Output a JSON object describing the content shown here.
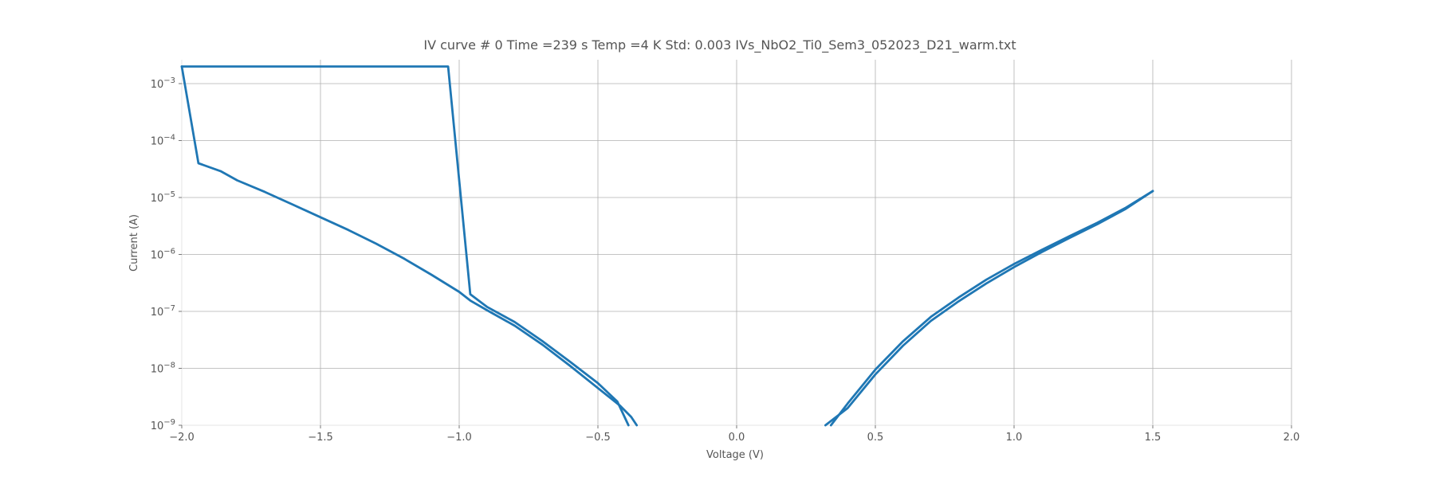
{
  "chart_data": {
    "type": "line",
    "title": "IV curve # 0  Time =239 s  Temp =4 K Std: 0.003 IVs_NbO2_Ti0_Sem3_052023_D21_warm.txt",
    "xlabel": "Voltage (V)",
    "ylabel": "Current (A)",
    "xlim": [
      -2.0,
      2.0
    ],
    "ylim": [
      1e-09,
      0.0025
    ],
    "yscale": "log",
    "grid": true,
    "legend": "none",
    "x_ticks": [
      {
        "value": -2.0,
        "label": "−2.0"
      },
      {
        "value": -1.5,
        "label": "−1.5"
      },
      {
        "value": -1.0,
        "label": "−1.0"
      },
      {
        "value": -0.5,
        "label": "−0.5"
      },
      {
        "value": 0.0,
        "label": "0.0"
      },
      {
        "value": 0.5,
        "label": "0.5"
      },
      {
        "value": 1.0,
        "label": "1.0"
      },
      {
        "value": 1.5,
        "label": "1.5"
      },
      {
        "value": 2.0,
        "label": "2.0"
      }
    ],
    "y_ticks": [
      {
        "value": 0.001,
        "base": "10",
        "exp": "−3"
      },
      {
        "value": 0.0001,
        "base": "10",
        "exp": "−4"
      },
      {
        "value": 1e-05,
        "base": "10",
        "exp": "−5"
      },
      {
        "value": 1e-06,
        "base": "10",
        "exp": "−6"
      },
      {
        "value": 1e-07,
        "base": "10",
        "exp": "−7"
      },
      {
        "value": 1e-08,
        "base": "10",
        "exp": "−8"
      },
      {
        "value": 1e-09,
        "base": "10",
        "exp": "−9"
      }
    ],
    "color": "#1f77b4",
    "series": [
      {
        "x": [
          -0.36,
          -0.38,
          -0.42,
          -0.5,
          -0.6,
          -0.7,
          -0.8,
          -0.9,
          -0.96,
          -1.0,
          -1.1,
          -1.2,
          -1.3,
          -1.4,
          -1.5,
          -1.6,
          -1.7,
          -1.8,
          -1.86,
          -1.94,
          -2.0
        ],
        "y": [
          1e-09,
          1.4e-09,
          2.2e-09,
          4.5e-09,
          1.1e-08,
          2.6e-08,
          5.6e-08,
          1.05e-07,
          1.55e-07,
          2.2e-07,
          4.4e-07,
          8.5e-07,
          1.55e-06,
          2.7e-06,
          4.5e-06,
          7.5e-06,
          1.25e-05,
          2e-05,
          2.9e-05,
          4e-05,
          0.002
        ]
      },
      {
        "x": [
          -2.0,
          -1.04,
          -0.96,
          -0.9,
          -0.8,
          -0.7,
          -0.6,
          -0.5,
          -0.43,
          -0.39
        ],
        "y": [
          0.002,
          0.002,
          2e-07,
          1.2e-07,
          6.5e-08,
          3e-08,
          1.3e-08,
          5.5e-09,
          2.6e-09,
          1e-09
        ]
      },
      {
        "x": [
          0.34,
          0.4,
          0.5,
          0.6,
          0.7,
          0.8,
          0.9,
          1.0,
          1.1,
          1.2,
          1.3,
          1.4,
          1.5
        ],
        "y": [
          1e-09,
          2.4e-09,
          9.5e-09,
          3e-08,
          8e-08,
          1.75e-07,
          3.6e-07,
          6.8e-07,
          1.2e-06,
          2.1e-06,
          3.6e-06,
          6.5e-06,
          1.3e-05
        ]
      },
      {
        "x": [
          1.5,
          1.4,
          1.3,
          1.2,
          1.1,
          1.0,
          0.9,
          0.8,
          0.7,
          0.6,
          0.5,
          0.4,
          0.32
        ],
        "y": [
          1.3e-05,
          6.2e-06,
          3.4e-06,
          1.95e-06,
          1.1e-06,
          6e-07,
          3.1e-07,
          1.5e-07,
          6.8e-08,
          2.5e-08,
          7.8e-09,
          2e-09,
          1e-09
        ]
      }
    ]
  }
}
